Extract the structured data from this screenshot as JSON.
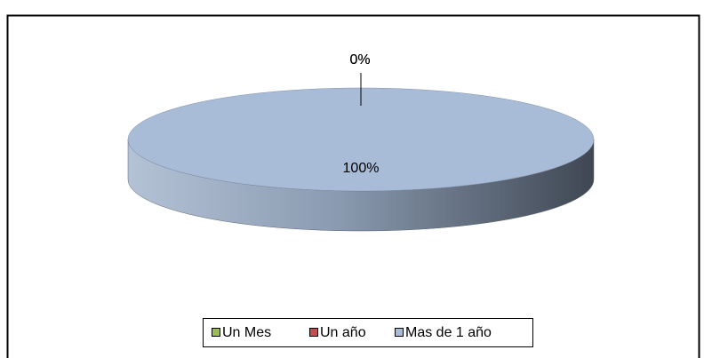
{
  "chart_data": {
    "type": "pie",
    "categories": [
      "Un Mes",
      "Un año",
      "Mas de 1 año"
    ],
    "values": [
      0,
      0,
      100
    ],
    "value_labels": [
      "0%",
      "0%",
      "100%"
    ],
    "colors": [
      "#9bbb59",
      "#c0504d",
      "#a9bcd7"
    ],
    "legend": "bottom"
  }
}
